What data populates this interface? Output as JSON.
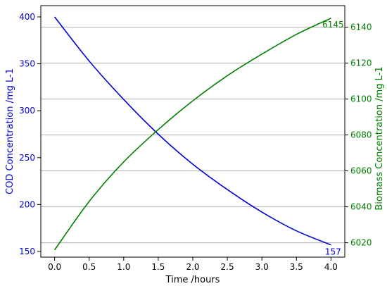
{
  "chart_data": {
    "type": "line",
    "xlabel": "Time /hours",
    "xlim": [
      -0.2,
      4.2
    ],
    "x_ticks": [
      0.0,
      0.5,
      1.0,
      1.5,
      2.0,
      2.5,
      3.0,
      3.5,
      4.0
    ],
    "x_tick_labels": [
      "0.0",
      "0.5",
      "1.0",
      "1.5",
      "2.0",
      "2.5",
      "3.0",
      "3.5",
      "4.0"
    ],
    "y_left": {
      "label": "COD Concentration /mg L-1",
      "color": "#0000dd",
      "lim": [
        144,
        412
      ],
      "ticks": [
        150,
        200,
        250,
        300,
        350,
        400
      ],
      "tick_labels": [
        "150",
        "200",
        "250",
        "300",
        "350",
        "400"
      ]
    },
    "y_right": {
      "label": "Biomass Concentration /mg L-1",
      "color": "#008000",
      "lim": [
        6012,
        6152
      ],
      "ticks": [
        6020,
        6040,
        6060,
        6080,
        6100,
        6120,
        6140
      ],
      "tick_labels": [
        "6020",
        "6040",
        "6060",
        "6080",
        "6100",
        "6120",
        "6140"
      ]
    },
    "series": [
      {
        "axis": "left",
        "color": "#0000dd",
        "x": [
          0.0,
          0.5,
          1.0,
          1.5,
          2.0,
          2.5,
          3.0,
          3.5,
          4.0
        ],
        "values": [
          400,
          353,
          312,
          275,
          243,
          216,
          192,
          172,
          157
        ],
        "end_label": "157"
      },
      {
        "axis": "right",
        "color": "#008000",
        "x": [
          0.0,
          0.5,
          1.0,
          1.5,
          2.0,
          2.5,
          3.0,
          3.5,
          4.0
        ],
        "values": [
          6016,
          6043,
          6065,
          6083,
          6099,
          6113,
          6125,
          6136,
          6145
        ],
        "end_label": "6145"
      }
    ],
    "grid": {
      "horizontal_right_axis": true,
      "color": "#b0b0b0"
    }
  }
}
